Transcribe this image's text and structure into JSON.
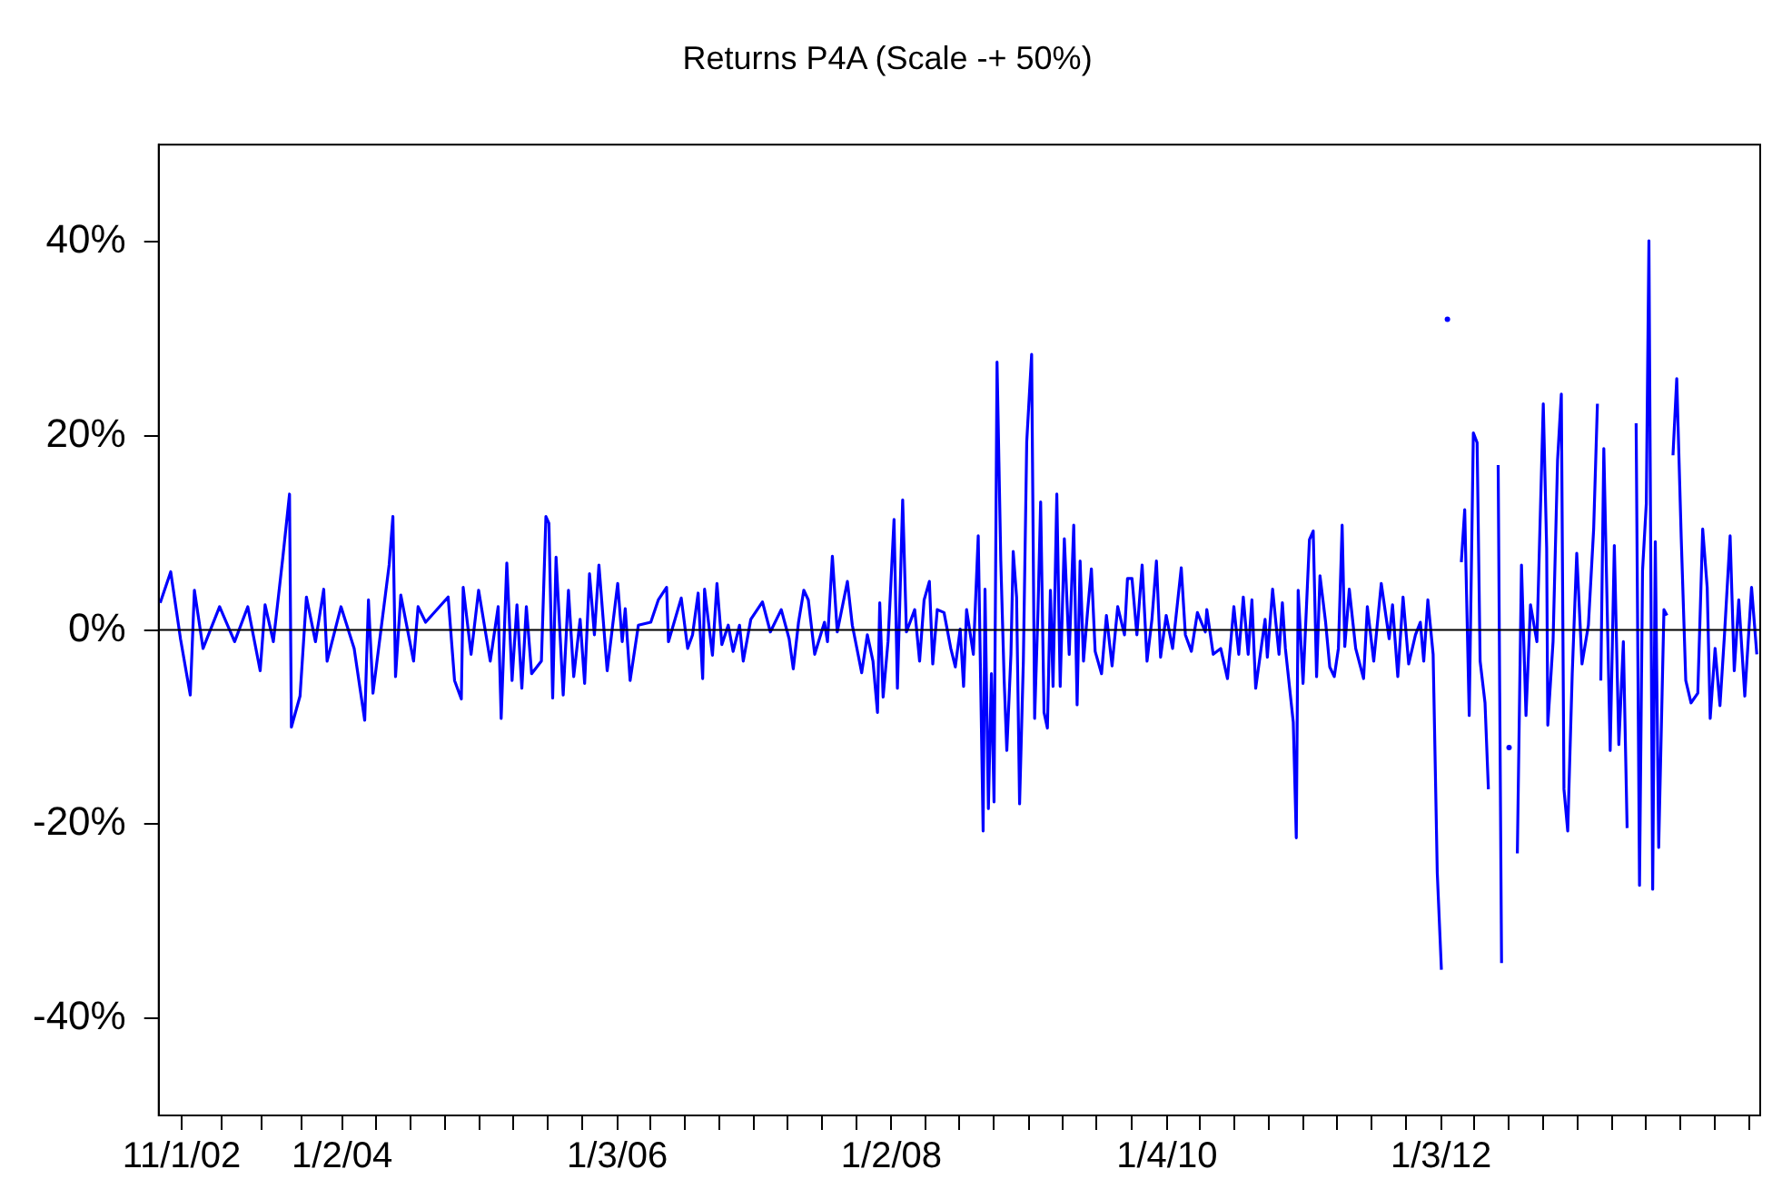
{
  "chart_data": {
    "type": "line",
    "title": "Returns P4A (Scale -+ 50%)",
    "color": "#0000ff",
    "marker": "none",
    "line_style": "solid",
    "grid": false,
    "legend": false,
    "xlim": [
      "2002-09-01",
      "2014-05-01"
    ],
    "xticks": [
      {
        "value": "2002-11-01",
        "label": "11/1/02"
      },
      {
        "value": "2003-02-15",
        "label": null
      },
      {
        "value": "2003-06-01",
        "label": null
      },
      {
        "value": "2003-09-15",
        "label": null
      },
      {
        "value": "2004-01-02",
        "label": "1/2/04"
      },
      {
        "value": "2004-04-01",
        "label": null
      },
      {
        "value": "2004-07-01",
        "label": null
      },
      {
        "value": "2004-10-01",
        "label": null
      },
      {
        "value": "2005-01-01",
        "label": null
      },
      {
        "value": "2005-04-01",
        "label": null
      },
      {
        "value": "2005-07-01",
        "label": null
      },
      {
        "value": "2005-10-01",
        "label": null
      },
      {
        "value": "2006-01-03",
        "label": "1/3/06"
      },
      {
        "value": "2006-04-01",
        "label": null
      },
      {
        "value": "2006-07-01",
        "label": null
      },
      {
        "value": "2006-10-01",
        "label": null
      },
      {
        "value": "2007-01-01",
        "label": null
      },
      {
        "value": "2007-04-01",
        "label": null
      },
      {
        "value": "2007-07-01",
        "label": null
      },
      {
        "value": "2007-10-01",
        "label": null
      },
      {
        "value": "2008-01-02",
        "label": "1/2/08"
      },
      {
        "value": "2008-04-01",
        "label": null
      },
      {
        "value": "2008-07-01",
        "label": null
      },
      {
        "value": "2008-10-01",
        "label": null
      },
      {
        "value": "2009-01-01",
        "label": null
      },
      {
        "value": "2009-04-01",
        "label": null
      },
      {
        "value": "2009-07-01",
        "label": null
      },
      {
        "value": "2009-10-01",
        "label": null
      },
      {
        "value": "2010-01-04",
        "label": "1/4/10"
      },
      {
        "value": "2010-04-01",
        "label": null
      },
      {
        "value": "2010-07-01",
        "label": null
      },
      {
        "value": "2010-10-01",
        "label": null
      },
      {
        "value": "2011-01-01",
        "label": null
      },
      {
        "value": "2011-04-01",
        "label": null
      },
      {
        "value": "2011-07-01",
        "label": null
      },
      {
        "value": "2011-10-01",
        "label": null
      },
      {
        "value": "2012-01-03",
        "label": "1/3/12"
      },
      {
        "value": "2012-04-01",
        "label": null
      },
      {
        "value": "2012-07-01",
        "label": null
      },
      {
        "value": "2012-10-01",
        "label": null
      },
      {
        "value": "2013-01-01",
        "label": null
      },
      {
        "value": "2013-04-01",
        "label": null
      },
      {
        "value": "2013-07-01",
        "label": null
      },
      {
        "value": "2013-10-01",
        "label": null
      },
      {
        "value": "2014-01-01",
        "label": null
      },
      {
        "value": "2014-04-01",
        "label": null
      }
    ],
    "ylim": [
      -50,
      50
    ],
    "yticks": [
      {
        "value": -40,
        "label": "-40%"
      },
      {
        "value": -20,
        "label": "-20%"
      },
      {
        "value": 0,
        "label": "0%"
      },
      {
        "value": 20,
        "label": "20%"
      },
      {
        "value": 40,
        "label": "40%"
      }
    ],
    "ref_lines": [
      {
        "axis": "y",
        "value": 0,
        "color": "#000000"
      }
    ],
    "x": [
      "2002-09-05",
      "2002-10-03",
      "2002-10-29",
      "2002-11-24",
      "2002-12-05",
      "2002-12-28",
      "2003-02-10",
      "2003-03-22",
      "2003-04-26",
      "2003-05-29",
      "2003-06-11",
      "2003-07-03",
      "2003-07-28",
      "2003-08-15",
      "2003-08-20",
      "2003-09-12",
      "2003-09-29",
      "2003-10-23",
      "2003-11-14",
      "2003-11-23",
      "2003-12-30",
      "2004-02-03",
      "2004-03-02",
      "2004-03-12",
      "2004-03-24",
      "2004-05-06",
      "2004-05-16",
      "2004-05-23",
      "2004-06-06",
      "2004-07-10",
      "2004-07-22",
      "2004-08-11",
      "2004-10-10",
      "2004-10-27",
      "2004-11-14",
      "2004-11-19",
      "2004-12-10",
      "2004-12-30",
      "2005-01-30",
      "2005-02-20",
      "2005-02-28",
      "2005-03-15",
      "2005-03-29",
      "2005-04-11",
      "2005-04-24",
      "2005-05-06",
      "2005-05-20",
      "2005-06-15",
      "2005-06-27",
      "2005-07-05",
      "2005-07-15",
      "2005-07-24",
      "2005-08-12",
      "2005-08-26",
      "2005-09-09",
      "2005-09-26",
      "2005-10-08",
      "2005-10-21",
      "2005-11-03",
      "2005-11-15",
      "2005-12-07",
      "2006-01-04",
      "2006-01-16",
      "2006-01-24",
      "2006-02-06",
      "2006-02-28",
      "2006-04-02",
      "2006-04-22",
      "2006-05-14",
      "2006-05-19",
      "2006-06-22",
      "2006-07-09",
      "2006-07-22",
      "2006-08-06",
      "2006-08-18",
      "2006-08-23",
      "2006-09-13",
      "2006-09-25",
      "2006-10-08",
      "2006-10-25",
      "2006-11-07",
      "2006-11-24",
      "2006-12-04",
      "2006-12-24",
      "2007-01-24",
      "2007-02-14",
      "2007-03-15",
      "2007-04-05",
      "2007-04-16",
      "2007-04-30",
      "2007-05-14",
      "2007-05-26",
      "2007-06-12",
      "2007-07-08",
      "2007-07-16",
      "2007-07-29",
      "2007-08-11",
      "2007-09-07",
      "2007-09-20",
      "2007-10-15",
      "2007-10-30",
      "2007-11-14",
      "2007-11-26",
      "2007-12-02",
      "2007-12-11",
      "2007-12-24",
      "2008-01-09",
      "2008-01-18",
      "2008-02-01",
      "2008-02-11",
      "2008-03-04",
      "2008-03-17",
      "2008-03-29",
      "2008-04-12",
      "2008-04-21",
      "2008-05-03",
      "2008-05-21",
      "2008-06-08",
      "2008-06-20",
      "2008-07-03",
      "2008-07-12",
      "2008-07-20",
      "2008-08-07",
      "2008-08-20",
      "2008-09-02",
      "2008-09-07",
      "2008-09-16",
      "2008-09-24",
      "2008-10-01",
      "2008-10-09",
      "2008-10-19",
      "2008-10-28",
      "2008-11-04",
      "2008-11-15",
      "2008-11-21",
      "2008-11-30",
      "2008-12-08",
      "2008-12-18",
      "2008-12-27",
      "2009-01-09",
      "2009-01-17",
      "2009-01-26",
      "2009-02-02",
      "2009-02-11",
      "2009-02-20",
      "2009-02-28",
      "2009-03-07",
      "2009-03-17",
      "2009-03-26",
      "2009-04-06",
      "2009-04-19",
      "2009-05-01",
      "2009-05-10",
      "2009-05-18",
      "2009-05-27",
      "2009-06-07",
      "2009-06-17",
      "2009-06-27",
      "2009-07-14",
      "2009-07-27",
      "2009-08-11",
      "2009-08-26",
      "2009-09-13",
      "2009-09-21",
      "2009-10-03",
      "2009-10-16",
      "2009-10-30",
      "2009-11-12",
      "2009-11-25",
      "2009-12-07",
      "2009-12-18",
      "2010-01-02",
      "2010-01-19",
      "2010-02-11",
      "2010-02-22",
      "2010-03-10",
      "2010-03-26",
      "2010-04-16",
      "2010-04-20",
      "2010-05-07",
      "2010-05-27",
      "2010-06-14",
      "2010-07-01",
      "2010-07-14",
      "2010-07-26",
      "2010-08-08",
      "2010-08-18",
      "2010-08-28",
      "2010-09-22",
      "2010-09-28",
      "2010-10-12",
      "2010-10-29",
      "2010-11-07",
      "2010-11-15",
      "2010-12-06",
      "2010-12-14",
      "2010-12-19",
      "2011-01-01",
      "2011-01-18",
      "2011-01-28",
      "2011-02-06",
      "2011-02-15",
      "2011-03-02",
      "2011-03-13",
      "2011-03-25",
      "2011-04-05",
      "2011-04-15",
      "2011-04-22",
      "2011-05-04",
      "2011-05-21",
      "2011-06-11",
      "2011-06-21",
      "2011-07-08",
      "2011-07-28",
      "2011-08-18",
      "2011-08-27",
      "2011-09-10",
      "2011-09-24",
      "2011-10-09",
      "2011-10-27",
      "2011-11-09",
      "2011-11-18",
      "2011-11-29",
      "2011-12-13",
      "2011-12-24",
      "2012-01-04",
      "2012-01-13",
      "2012-01-20",
      "2012-01-27",
      "2012-02-07",
      "2012-02-16",
      "2012-02-26",
      "2012-03-06",
      "2012-03-18",
      "2012-03-29",
      "2012-04-08",
      "2012-04-16",
      "2012-04-29",
      "2012-05-08",
      "2012-05-20",
      "2012-06-03",
      "2012-06-12",
      "2012-06-23",
      "2012-07-02",
      "2012-07-12",
      "2012-07-24",
      "2012-08-04",
      "2012-08-16",
      "2012-08-28",
      "2012-09-14",
      "2012-10-01",
      "2012-10-10",
      "2012-10-13",
      "2012-10-27",
      "2012-11-08",
      "2012-11-18",
      "2012-11-25",
      "2012-12-05",
      "2012-12-17",
      "2012-12-29",
      "2013-01-12",
      "2013-01-29",
      "2013-02-12",
      "2013-02-22",
      "2013-02-27",
      "2013-03-03",
      "2013-03-11",
      "2013-03-28",
      "2013-04-08",
      "2013-04-20",
      "2013-05-02",
      "2013-05-12",
      "2013-05-22",
      "2013-06-05",
      "2013-06-14",
      "2013-06-22",
      "2013-07-02",
      "2013-07-09",
      "2013-07-19",
      "2013-07-26",
      "2013-08-04",
      "2013-08-18",
      "2013-08-26",
      "2013-09-03",
      "2013-09-11",
      "2013-09-21",
      "2013-10-03",
      "2013-10-15",
      "2013-10-29",
      "2013-11-16",
      "2013-11-29",
      "2013-12-11",
      "2013-12-19",
      "2014-01-01",
      "2014-01-14",
      "2014-01-26",
      "2014-02-10",
      "2014-02-21",
      "2014-03-05",
      "2014-03-21",
      "2014-04-08",
      "2014-04-22"
    ],
    "values": [
      2.8,
      6,
      -0.9,
      -6.7,
      4.1,
      -1.9,
      2.4,
      -1.2,
      2.4,
      -4.2,
      2.6,
      -1.2,
      7.4,
      14,
      -10,
      -6.8,
      3.4,
      -1.2,
      4.2,
      -3.2,
      2.4,
      -1.9,
      -9.3,
      3.1,
      -6.5,
      6.7,
      11.7,
      -4.8,
      3.6,
      -3.2,
      2.4,
      0.8,
      3.4,
      -5.2,
      -7.1,
      4.4,
      -2.5,
      4.1,
      -3.2,
      2.4,
      -9.1,
      6.9,
      -5.2,
      2.6,
      -6,
      2.4,
      -4.5,
      -3.2,
      11.7,
      11,
      -7,
      7.5,
      -6.7,
      4.1,
      -4.8,
      1.1,
      -5.5,
      5.8,
      -0.5,
      6.7,
      -4.2,
      4.8,
      -1.2,
      2.2,
      -5.2,
      0.5,
      0.8,
      3.1,
      4.4,
      -1.2,
      3.3,
      -1.9,
      -0.5,
      3.8,
      -5,
      4.2,
      -2.6,
      4.8,
      -1.5,
      0.5,
      -2.2,
      0.5,
      -3.2,
      1.1,
      2.9,
      -0.2,
      2.1,
      -0.9,
      -4,
      0.8,
      4.1,
      3.1,
      -2.5,
      0.8,
      -1.2,
      7.6,
      -0.2,
      5,
      0.5,
      -4.4,
      -0.5,
      -3.2,
      -8.5,
      2.8,
      -6.9,
      -1.2,
      11.4,
      -6,
      13.4,
      -0.2,
      2.1,
      -3.2,
      3.1,
      5,
      -3.5,
      2.1,
      1.8,
      -1.9,
      -3.8,
      0.1,
      -5.8,
      2.1,
      -2.5,
      9.7,
      -20.7,
      4.2,
      -18.4,
      -4.5,
      -17.7,
      27.6,
      7.1,
      -5.2,
      -12.4,
      -2.5,
      8.1,
      3.4,
      -17.9,
      -3.2,
      19.4,
      28.4,
      -9.1,
      2.1,
      13.2,
      -8.5,
      -10.1,
      4.1,
      -5.8,
      14,
      -5.8,
      9.4,
      -2.5,
      10.8,
      -7.7,
      7.1,
      -3.2,
      2,
      6.3,
      -2.2,
      -4.5,
      1.5,
      -3.7,
      2.4,
      -0.5,
      5.3,
      5.3,
      -0.5,
      6.7,
      -3.2,
      1.1,
      7.1,
      -2.8,
      1.5,
      -1.9,
      6.4,
      -0.5,
      -2.2,
      1.8,
      -0.2,
      2.1,
      -2.5,
      -1.9,
      -5,
      2.4,
      -2.5,
      3.4,
      -2.5,
      3.1,
      -6,
      1.1,
      -2.8,
      4.2,
      -2.5,
      2.8,
      -1.9,
      -9.5,
      -21.4,
      4.1,
      -5.5,
      9.3,
      10.2,
      -4.8,
      5.6,
      0.8,
      -3.8,
      -4.8,
      -1.9,
      10.8,
      -1.7,
      4.2,
      -1.9,
      -5,
      2.4,
      -3.2,
      4.8,
      -0.9,
      2.6,
      -4.8,
      3.4,
      -3.5,
      -0.5,
      0.8,
      -3.2,
      3.1,
      -2.5,
      -25,
      -35,
      null,
      32,
      null,
      null,
      null,
      7,
      12.4,
      -8.8,
      20.3,
      19.3,
      -3.2,
      -7.5,
      -16.4,
      null,
      17,
      -34.3,
      null,
      -12.1,
      null,
      -23,
      6.7,
      -8.8,
      2.6,
      -1.2,
      23.3,
      8.4,
      -9.8,
      -1.2,
      17.5,
      24.3,
      -16.4,
      -20.7,
      -4.5,
      7.9,
      -3.5,
      0.5,
      10.4,
      23.3,
      null,
      -5.2,
      18.7,
      -12.4,
      8.7,
      -11.8,
      -1.2,
      -20.4,
      null,
      21.3,
      -26.3,
      6.1,
      13,
      40.1,
      -26.7,
      9.1,
      -22.4,
      2.1,
      1.5,
      null,
      18,
      25.9,
      9.4,
      -5.2,
      -7.5,
      -6.5,
      10.4,
      4.4,
      -9.1,
      -1.9,
      -7.8,
      -0.5,
      9.7,
      -4.2,
      3.1,
      -6.8,
      4.4,
      -2.5
    ]
  }
}
